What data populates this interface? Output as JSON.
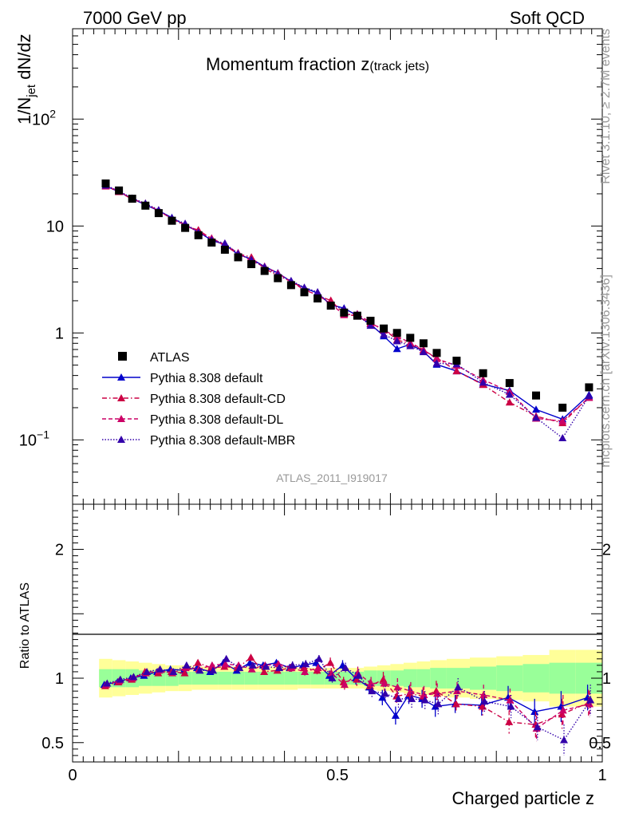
{
  "header": {
    "left": "7000 GeV pp",
    "right": "Soft QCD"
  },
  "chart_data": {
    "type": "line",
    "title_main": "Momentum fraction ",
    "title_var": "z",
    "title_sub": "(track jets)",
    "analysis_id": "ATLAS_2011_I919017",
    "side_top": "Rivet 3.1.10, ≥ 2.7M events",
    "side_bottom": "mcplots.cern.ch [arXiv:1306.3436]",
    "ylabel": "1/N_jet dN/dz",
    "xlabel": "Charged particle z",
    "ratio_ylabel": "Ratio to ATLAS",
    "xlim": [
      0,
      1
    ],
    "ylim": [
      0.025,
      700
    ],
    "ratio_ylim": [
      0.35,
      2.35
    ],
    "y_scale": "log",
    "legend_position": "bottom-left",
    "x_ticks": [
      "0",
      "0.5",
      "1"
    ],
    "y_ticks": [
      {
        "v": 0.1,
        "label": "10",
        "exp": "−1"
      },
      {
        "v": 1,
        "label": "1",
        "exp": ""
      },
      {
        "v": 10,
        "label": "10",
        "exp": ""
      },
      {
        "v": 100,
        "label": "10",
        "exp": "2"
      }
    ],
    "ratio_ticks": [
      "0.5",
      "1",
      "2"
    ],
    "x": [
      0.0625,
      0.0875,
      0.1125,
      0.1375,
      0.1625,
      0.1875,
      0.2125,
      0.2375,
      0.2625,
      0.2875,
      0.3125,
      0.3375,
      0.3625,
      0.3875,
      0.4125,
      0.4375,
      0.4625,
      0.4875,
      0.5125,
      0.5375,
      0.5625,
      0.5875,
      0.6125,
      0.6375,
      0.6625,
      0.6875,
      0.725,
      0.775,
      0.825,
      0.875,
      0.925,
      0.975
    ],
    "data": {
      "name": "ATLAS",
      "values": [
        25.0,
        21.5,
        18.0,
        15.5,
        13.2,
        11.2,
        9.6,
        8.2,
        7.0,
        6.0,
        5.1,
        4.4,
        3.8,
        3.25,
        2.8,
        2.4,
        2.1,
        1.8,
        1.55,
        1.45,
        1.3,
        1.1,
        1.0,
        0.9,
        0.8,
        0.65,
        0.55,
        0.42,
        0.34,
        0.26,
        0.2,
        0.31
      ],
      "band_inner": [
        0.07,
        0.07,
        0.07,
        0.06,
        0.06,
        0.06,
        0.05,
        0.05,
        0.05,
        0.05,
        0.05,
        0.05,
        0.05,
        0.05,
        0.05,
        0.05,
        0.05,
        0.05,
        0.05,
        0.05,
        0.06,
        0.06,
        0.06,
        0.07,
        0.07,
        0.08,
        0.08,
        0.09,
        0.1,
        0.11,
        0.12,
        0.12
      ],
      "band_outer": [
        0.15,
        0.14,
        0.13,
        0.12,
        0.11,
        0.1,
        0.1,
        0.09,
        0.09,
        0.09,
        0.09,
        0.09,
        0.09,
        0.09,
        0.09,
        0.08,
        0.08,
        0.08,
        0.08,
        0.08,
        0.09,
        0.1,
        0.11,
        0.12,
        0.13,
        0.14,
        0.15,
        0.16,
        0.17,
        0.18,
        0.22,
        0.22
      ]
    },
    "series": [
      {
        "name": "Pythia 8.308 default",
        "color": "#0000cc",
        "style": "solid",
        "ratio": [
          0.95,
          0.97,
          1.0,
          1.02,
          1.05,
          1.07,
          1.06,
          1.08,
          1.05,
          1.12,
          1.06,
          1.12,
          1.1,
          1.12,
          1.08,
          1.1,
          1.12,
          1.02,
          1.1,
          1.0,
          0.93,
          0.85,
          0.71,
          0.87,
          0.84,
          0.78,
          0.8,
          0.79,
          0.85,
          0.74,
          0.78,
          0.85
        ],
        "ratio_err": [
          0.02,
          0.02,
          0.02,
          0.02,
          0.02,
          0.02,
          0.02,
          0.02,
          0.02,
          0.02,
          0.02,
          0.02,
          0.02,
          0.02,
          0.03,
          0.03,
          0.03,
          0.04,
          0.04,
          0.05,
          0.05,
          0.06,
          0.07,
          0.07,
          0.07,
          0.08,
          0.07,
          0.08,
          0.09,
          0.1,
          0.12,
          0.1
        ]
      },
      {
        "name": "Pythia 8.308 default-CD",
        "color": "#cc0044",
        "style": "dashdot",
        "ratio": [
          0.94,
          0.97,
          0.99,
          1.05,
          1.04,
          1.05,
          1.04,
          1.12,
          1.08,
          1.09,
          1.08,
          1.16,
          1.05,
          1.06,
          1.08,
          1.08,
          1.06,
          1.12,
          0.97,
          0.99,
          0.94,
          0.99,
          0.86,
          0.88,
          0.86,
          0.9,
          0.8,
          0.78,
          0.66,
          0.64,
          0.72,
          0.81
        ],
        "ratio_err": [
          0.02,
          0.02,
          0.02,
          0.02,
          0.02,
          0.02,
          0.02,
          0.02,
          0.02,
          0.02,
          0.02,
          0.02,
          0.02,
          0.02,
          0.03,
          0.03,
          0.03,
          0.04,
          0.04,
          0.05,
          0.05,
          0.06,
          0.07,
          0.07,
          0.07,
          0.08,
          0.07,
          0.08,
          0.09,
          0.1,
          0.12,
          0.1
        ]
      },
      {
        "name": "Pythia 8.308 default-DL",
        "color": "#cc0066",
        "style": "dashed",
        "ratio": [
          0.95,
          0.98,
          1.0,
          1.04,
          1.06,
          1.04,
          1.08,
          1.07,
          1.1,
          1.11,
          1.1,
          1.07,
          1.1,
          1.11,
          1.08,
          1.05,
          1.08,
          1.04,
          0.95,
          1.04,
          0.96,
          0.96,
          0.93,
          0.9,
          0.87,
          0.88,
          0.9,
          0.87,
          0.83,
          0.61,
          0.75,
          0.8
        ],
        "ratio_err": [
          0.02,
          0.02,
          0.02,
          0.02,
          0.02,
          0.02,
          0.02,
          0.02,
          0.02,
          0.02,
          0.02,
          0.02,
          0.02,
          0.02,
          0.03,
          0.03,
          0.03,
          0.04,
          0.04,
          0.05,
          0.05,
          0.06,
          0.07,
          0.07,
          0.07,
          0.08,
          0.07,
          0.08,
          0.09,
          0.1,
          0.12,
          0.1
        ]
      },
      {
        "name": "Pythia 8.308 default-MBR",
        "color": "#3300aa",
        "style": "dotted",
        "ratio": [
          0.96,
          0.99,
          1.01,
          1.05,
          1.07,
          1.05,
          1.1,
          1.06,
          1.06,
          1.15,
          1.08,
          1.1,
          1.09,
          1.08,
          1.1,
          1.11,
          1.15,
          1.0,
          1.08,
          1.02,
          0.9,
          0.88,
          0.84,
          0.84,
          0.83,
          0.8,
          0.93,
          0.82,
          0.78,
          0.62,
          0.52,
          0.83
        ],
        "ratio_err": [
          0.02,
          0.02,
          0.02,
          0.02,
          0.02,
          0.02,
          0.02,
          0.02,
          0.02,
          0.02,
          0.02,
          0.02,
          0.02,
          0.02,
          0.03,
          0.03,
          0.03,
          0.04,
          0.04,
          0.05,
          0.05,
          0.06,
          0.07,
          0.07,
          0.07,
          0.08,
          0.07,
          0.08,
          0.09,
          0.1,
          0.12,
          0.12
        ]
      }
    ],
    "colors": {
      "band_inner": "#99ff99",
      "band_outer": "#ffff99",
      "data_marker": "#000000"
    }
  }
}
